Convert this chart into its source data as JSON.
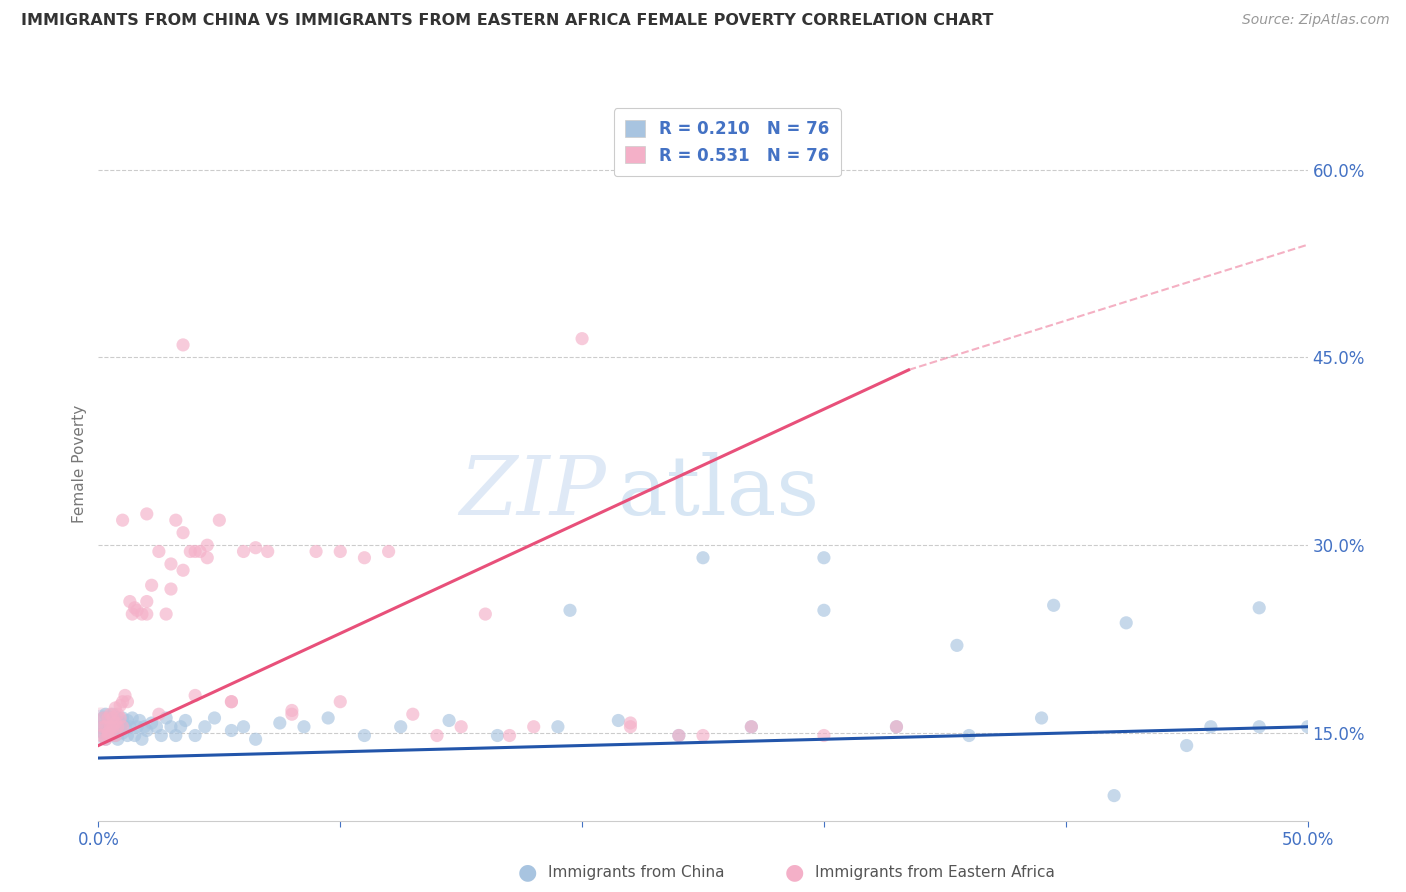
{
  "title": "IMMIGRANTS FROM CHINA VS IMMIGRANTS FROM EASTERN AFRICA FEMALE POVERTY CORRELATION CHART",
  "source": "Source: ZipAtlas.com",
  "ylabel": "Female Poverty",
  "right_yticks": [
    0.15,
    0.3,
    0.45,
    0.6
  ],
  "right_yticklabels": [
    "15.0%",
    "30.0%",
    "45.0%",
    "60.0%"
  ],
  "xlim": [
    0.0,
    0.5
  ],
  "ylim": [
    0.08,
    0.65
  ],
  "legend_r1": "0.210",
  "legend_n1": "76",
  "legend_r2": "0.531",
  "legend_n2": "76",
  "legend_label1": "Immigrants from China",
  "legend_label2": "Immigrants from Eastern Africa",
  "color_china": "#a8c4e0",
  "color_africa": "#f4b0c8",
  "color_china_line": "#2255aa",
  "color_africa_line": "#e8507a",
  "color_axis": "#4472c4",
  "color_text": "#4472c4",
  "watermark_zip": "ZIP",
  "watermark_atlas": "atlas",
  "china_x": [
    0.001,
    0.002,
    0.002,
    0.003,
    0.003,
    0.003,
    0.004,
    0.004,
    0.004,
    0.005,
    0.005,
    0.005,
    0.006,
    0.006,
    0.006,
    0.007,
    0.007,
    0.008,
    0.008,
    0.008,
    0.009,
    0.009,
    0.01,
    0.01,
    0.011,
    0.012,
    0.012,
    0.013,
    0.014,
    0.015,
    0.016,
    0.017,
    0.018,
    0.019,
    0.02,
    0.022,
    0.024,
    0.026,
    0.028,
    0.03,
    0.032,
    0.034,
    0.036,
    0.04,
    0.044,
    0.048,
    0.055,
    0.06,
    0.065,
    0.075,
    0.085,
    0.095,
    0.11,
    0.125,
    0.145,
    0.165,
    0.19,
    0.215,
    0.24,
    0.27,
    0.3,
    0.33,
    0.36,
    0.39,
    0.42,
    0.45,
    0.48,
    0.3,
    0.395,
    0.425,
    0.355,
    0.25,
    0.195,
    0.5,
    0.48,
    0.46
  ],
  "china_y": [
    0.155,
    0.15,
    0.162,
    0.145,
    0.155,
    0.165,
    0.15,
    0.16,
    0.152,
    0.155,
    0.162,
    0.148,
    0.158,
    0.152,
    0.165,
    0.148,
    0.16,
    0.155,
    0.162,
    0.145,
    0.158,
    0.155,
    0.15,
    0.162,
    0.155,
    0.148,
    0.16,
    0.155,
    0.162,
    0.148,
    0.155,
    0.16,
    0.145,
    0.155,
    0.152,
    0.158,
    0.155,
    0.148,
    0.162,
    0.155,
    0.148,
    0.155,
    0.16,
    0.148,
    0.155,
    0.162,
    0.152,
    0.155,
    0.145,
    0.158,
    0.155,
    0.162,
    0.148,
    0.155,
    0.16,
    0.148,
    0.155,
    0.16,
    0.148,
    0.155,
    0.29,
    0.155,
    0.148,
    0.162,
    0.1,
    0.14,
    0.25,
    0.248,
    0.252,
    0.238,
    0.22,
    0.29,
    0.248,
    0.155,
    0.155,
    0.155
  ],
  "africa_x": [
    0.001,
    0.002,
    0.002,
    0.003,
    0.003,
    0.004,
    0.004,
    0.004,
    0.005,
    0.005,
    0.005,
    0.006,
    0.006,
    0.007,
    0.007,
    0.007,
    0.008,
    0.008,
    0.009,
    0.009,
    0.01,
    0.01,
    0.011,
    0.012,
    0.013,
    0.014,
    0.015,
    0.016,
    0.018,
    0.02,
    0.022,
    0.025,
    0.028,
    0.03,
    0.032,
    0.035,
    0.038,
    0.04,
    0.042,
    0.045,
    0.05,
    0.055,
    0.06,
    0.065,
    0.07,
    0.08,
    0.09,
    0.1,
    0.11,
    0.12,
    0.13,
    0.14,
    0.15,
    0.16,
    0.17,
    0.18,
    0.2,
    0.22,
    0.24,
    0.27,
    0.3,
    0.33,
    0.02,
    0.025,
    0.03,
    0.035,
    0.04,
    0.045,
    0.25,
    0.22,
    0.1,
    0.08,
    0.055,
    0.035,
    0.02,
    0.01
  ],
  "africa_y": [
    0.148,
    0.155,
    0.162,
    0.145,
    0.155,
    0.15,
    0.162,
    0.148,
    0.155,
    0.165,
    0.148,
    0.162,
    0.155,
    0.148,
    0.158,
    0.17,
    0.165,
    0.155,
    0.162,
    0.172,
    0.155,
    0.175,
    0.18,
    0.175,
    0.255,
    0.245,
    0.25,
    0.248,
    0.245,
    0.255,
    0.268,
    0.165,
    0.245,
    0.265,
    0.32,
    0.28,
    0.295,
    0.18,
    0.295,
    0.29,
    0.32,
    0.175,
    0.295,
    0.298,
    0.295,
    0.168,
    0.295,
    0.295,
    0.29,
    0.295,
    0.165,
    0.148,
    0.155,
    0.245,
    0.148,
    0.155,
    0.465,
    0.158,
    0.148,
    0.155,
    0.148,
    0.155,
    0.325,
    0.295,
    0.285,
    0.31,
    0.295,
    0.3,
    0.148,
    0.155,
    0.175,
    0.165,
    0.175,
    0.46,
    0.245,
    0.32
  ]
}
